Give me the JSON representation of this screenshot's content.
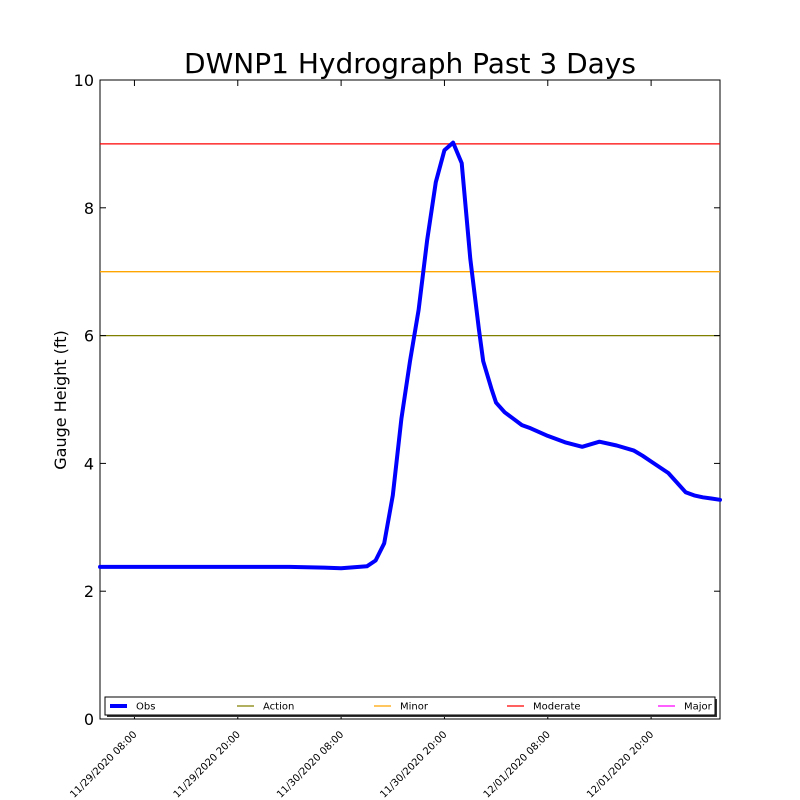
{
  "chart_data": {
    "type": "line",
    "title": "DWNP1 Hydrograph Past 3 Days",
    "xlabel": "",
    "ylabel": "Gauge Height (ft)",
    "ylim": [
      0,
      10
    ],
    "yticks": [
      "0",
      "2",
      "4",
      "6",
      "8",
      "10"
    ],
    "xlim": [
      "11/29/2020 04:00",
      "12/02/2020 04:00"
    ],
    "xticks": [
      "11/29/2020 08:00",
      "11/29/2020 20:00",
      "11/30/2020 08:00",
      "11/30/2020 20:00",
      "12/01/2020 08:00",
      "12/01/2020 20:00"
    ],
    "grid": false,
    "legend_placement": "bottom",
    "series": [
      {
        "name": "Obs",
        "color": "#0000ff",
        "x": [
          "11/29/2020 04:00",
          "11/29/2020 08:00",
          "11/29/2020 14:00",
          "11/29/2020 20:00",
          "11/30/2020 02:00",
          "11/30/2020 06:00",
          "11/30/2020 08:00",
          "11/30/2020 11:00",
          "11/30/2020 12:00",
          "11/30/2020 13:00",
          "11/30/2020 14:00",
          "11/30/2020 15:00",
          "11/30/2020 16:00",
          "11/30/2020 17:00",
          "11/30/2020 18:00",
          "11/30/2020 19:00",
          "11/30/2020 20:00",
          "11/30/2020 21:00",
          "11/30/2020 22:00",
          "11/30/2020 23:00",
          "12/01/2020 00:00",
          "12/01/2020 00:30",
          "12/01/2020 01:30",
          "12/01/2020 02:00",
          "12/01/2020 03:00",
          "12/01/2020 04:00",
          "12/01/2020 05:00",
          "12/01/2020 06:00",
          "12/01/2020 08:00",
          "12/01/2020 10:00",
          "12/01/2020 12:00",
          "12/01/2020 14:00",
          "12/01/2020 16:00",
          "12/01/2020 18:00",
          "12/01/2020 19:00",
          "12/01/2020 20:00",
          "12/01/2020 22:00",
          "12/02/2020 00:00",
          "12/02/2020 01:00",
          "12/02/2020 02:00",
          "12/02/2020 03:00",
          "12/02/2020 04:00"
        ],
        "y": [
          2.38,
          2.38,
          2.38,
          2.38,
          2.38,
          2.37,
          2.36,
          2.39,
          2.48,
          2.75,
          3.5,
          4.7,
          5.6,
          6.4,
          7.5,
          8.4,
          8.9,
          9.02,
          8.7,
          7.2,
          6.1,
          5.6,
          5.15,
          4.95,
          4.8,
          4.7,
          4.6,
          4.55,
          4.43,
          4.33,
          4.26,
          4.34,
          4.28,
          4.2,
          4.12,
          4.03,
          3.85,
          3.55,
          3.5,
          3.47,
          3.45,
          3.43
        ]
      }
    ],
    "thresholds": [
      {
        "name": "Action",
        "value": 6,
        "color": "#808000"
      },
      {
        "name": "Minor",
        "value": 7,
        "color": "#ffa500"
      },
      {
        "name": "Moderate",
        "value": 9,
        "color": "#ff0000"
      },
      {
        "name": "Major",
        "value": null,
        "color": "#ff00ff"
      }
    ]
  }
}
